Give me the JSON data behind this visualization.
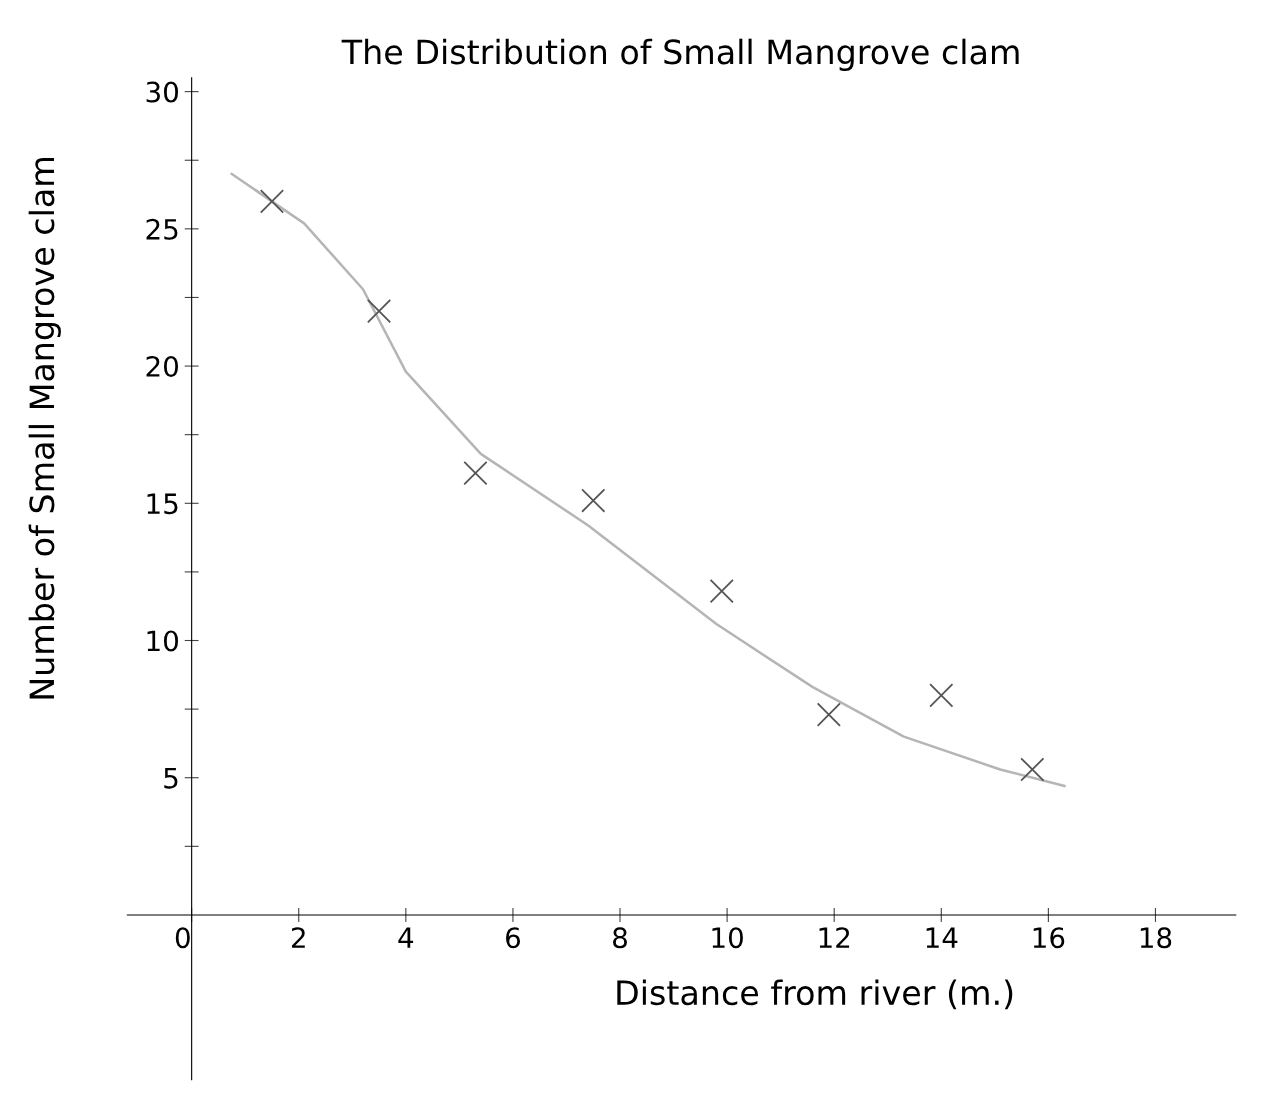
{
  "chart_data": {
    "type": "scatter",
    "title": "The Distribution of Small Mangrove clam",
    "xlabel": "Distance from river (m.)",
    "ylabel": "Number of Small Mangrove clam",
    "xlim": [
      -1.2,
      19.5
    ],
    "ylim": [
      -6,
      30.5
    ],
    "xticks": [
      {
        "value": 0,
        "label": "0"
      },
      2,
      4,
      6,
      8,
      10,
      12,
      14,
      16,
      18
    ],
    "yticks": [
      {
        "value": 2.5,
        "label": null
      },
      5,
      {
        "value": 7.5,
        "label": null
      },
      10,
      {
        "value": 12.5,
        "label": null
      },
      15,
      {
        "value": 17.5,
        "label": null
      },
      20,
      {
        "value": 22.5,
        "label": null
      },
      25,
      {
        "value": 27.5,
        "label": null
      },
      30
    ],
    "grid": false,
    "series": [
      {
        "color": "#555555",
        "marker": "cross",
        "x": [
          1.5,
          3.5,
          5.3,
          7.5,
          9.9,
          11.9,
          14.0,
          15.7
        ],
        "values": [
          26.0,
          22.0,
          16.1,
          15.1,
          11.8,
          7.3,
          8.0,
          5.3
        ]
      },
      {
        "type": "line",
        "color": "#b5b5b5",
        "marker": "none",
        "line_style": "solid",
        "x": [
          0.75,
          2.1,
          3.2,
          4.0,
          5.4,
          7.4,
          9.8,
          11.6,
          13.3,
          15.1,
          16.3
        ],
        "values": [
          27.0,
          25.2,
          22.8,
          19.8,
          16.8,
          14.2,
          10.6,
          8.3,
          6.5,
          5.3,
          4.7
        ]
      }
    ]
  }
}
